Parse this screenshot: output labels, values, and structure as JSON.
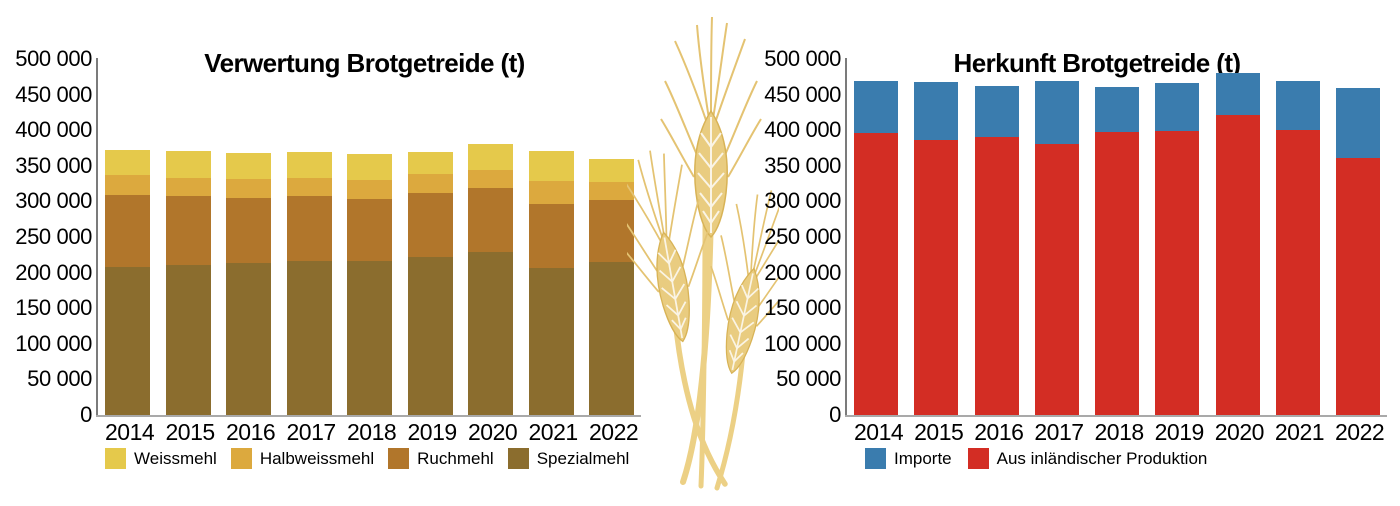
{
  "page": {
    "background": "#ffffff"
  },
  "decor": {
    "wheat_icon": "wheat-ears-illustration"
  },
  "chart_data": [
    {
      "type": "bar",
      "stacked": true,
      "title": "Verwertung Brotgetreide (t)",
      "categories": [
        "2014",
        "2015",
        "2016",
        "2017",
        "2018",
        "2019",
        "2020",
        "2021",
        "2022"
      ],
      "series": [
        {
          "name": "Spezialmehl",
          "color": "#8b6d2e",
          "values": [
            208000,
            211000,
            214000,
            217000,
            216000,
            222000,
            229000,
            207000,
            215000
          ]
        },
        {
          "name": "Ruchmehl",
          "color": "#b1762b",
          "values": [
            101000,
            97000,
            91000,
            90000,
            88000,
            90000,
            90000,
            90000,
            87000
          ]
        },
        {
          "name": "Halbweissmehl",
          "color": "#dca93e",
          "values": [
            28000,
            25000,
            27000,
            26000,
            26000,
            26000,
            25000,
            32000,
            25000
          ]
        },
        {
          "name": "Weissmehl",
          "color": "#e5c94b",
          "values": [
            35000,
            38000,
            36000,
            36000,
            36000,
            31000,
            37000,
            42000,
            32000
          ]
        }
      ],
      "legend": [
        {
          "label": "Weissmehl",
          "color": "#e5c94b"
        },
        {
          "label": "Halbweissmehl",
          "color": "#dca93e"
        },
        {
          "label": "Ruchmehl",
          "color": "#b1762b"
        },
        {
          "label": "Spezialmehl",
          "color": "#8b6d2e"
        }
      ],
      "y_tick_labels": [
        "500 000",
        "450 000",
        "400 000",
        "350 000",
        "300 000",
        "250 000",
        "200 000",
        "150 000",
        "100 000",
        "50 000",
        "0"
      ],
      "ylim": [
        0,
        500000
      ],
      "grid": false,
      "legend_position": "bottom"
    },
    {
      "type": "bar",
      "stacked": true,
      "title": "Herkunft Brotgetreide (t)",
      "categories": [
        "2014",
        "2015",
        "2016",
        "2017",
        "2018",
        "2019",
        "2020",
        "2021",
        "2022"
      ],
      "series": [
        {
          "name": "Aus inländischer Produktion",
          "color": "#d32d24",
          "values": [
            396000,
            386000,
            391000,
            381000,
            397000,
            399000,
            421000,
            401000,
            361000
          ]
        },
        {
          "name": "Importe",
          "color": "#3a7cae",
          "values": [
            73000,
            82000,
            71000,
            88000,
            64000,
            67000,
            60000,
            68000,
            99000
          ]
        }
      ],
      "legend": [
        {
          "label": "Importe",
          "color": "#3a7cae"
        },
        {
          "label": "Aus inländischer Produktion",
          "color": "#d32d24"
        }
      ],
      "y_tick_labels": [
        "500 000",
        "450 000",
        "400 000",
        "350 000",
        "300 000",
        "250 000",
        "200 000",
        "150 000",
        "100 000",
        "50 000",
        "0"
      ],
      "ylim": [
        0,
        500000
      ],
      "grid": false,
      "legend_position": "bottom"
    }
  ]
}
